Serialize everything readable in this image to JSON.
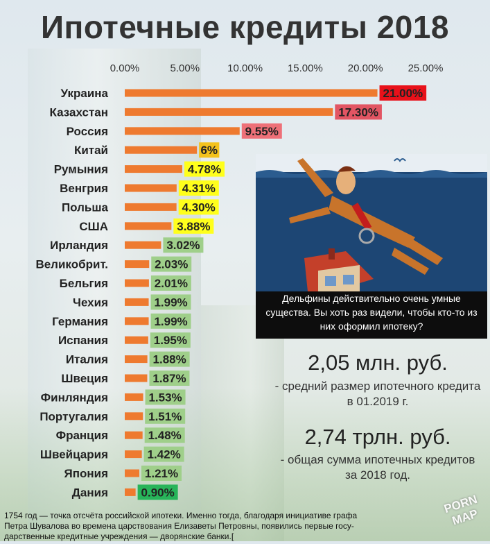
{
  "title": "Ипотечные кредиты 2018",
  "chart_data": {
    "type": "bar",
    "orientation": "horizontal",
    "x_ticks": [
      "0.00%",
      "5.00%",
      "10.00%",
      "15.00%",
      "20.00%",
      "25.00%"
    ],
    "xlim": [
      0,
      25
    ],
    "grid": false,
    "categories": [
      "Украина",
      "Казахстан",
      "Россия",
      "Китай",
      "Румыния",
      "Венгрия",
      "Польша",
      "США",
      "Ирландия",
      "Великобрит.",
      "Бельгия",
      "Чехия",
      "Германия",
      "Испания",
      "Италия",
      "Швеция",
      "Финляндия",
      "Португалия",
      "Франция",
      "Швейцария",
      "Япония",
      "Дания"
    ],
    "values": [
      21.0,
      17.3,
      9.55,
      6.0,
      4.78,
      4.31,
      4.3,
      3.88,
      3.02,
      2.03,
      2.01,
      1.99,
      1.99,
      1.95,
      1.88,
      1.87,
      1.53,
      1.51,
      1.48,
      1.42,
      1.21,
      0.9
    ],
    "labels": [
      "21.00%",
      "17.30%",
      "9.55%",
      "6%",
      "4.78%",
      "4.31%",
      "4.30%",
      "3.88%",
      "3.02%",
      "2.03%",
      "2.01%",
      "1.99%",
      "1.99%",
      "1.95%",
      "1.88%",
      "1.87%",
      "1.53%",
      "1.51%",
      "1.48%",
      "1.42%",
      "1.21%",
      "0.90%"
    ],
    "label_colors": [
      "#e8111a",
      "#e25563",
      "#ee7078",
      "#f3c21c",
      "#ffff1c",
      "#ffff1c",
      "#ffff1c",
      "#ffff1c",
      "#9fcf8a",
      "#9fcf8a",
      "#9fcf8a",
      "#9fcf8a",
      "#9fcf8a",
      "#9fcf8a",
      "#9fcf8a",
      "#9fcf8a",
      "#9fcf8a",
      "#9fcf8a",
      "#9fcf8a",
      "#9fcf8a",
      "#9fcf8a",
      "#27b45a"
    ],
    "bar_color": "#ee7a2f"
  },
  "cartoon": {
    "caption": "Дельфины действительно очень умные существа. Вы хоть раз видели, чтобы кто-то из них оформил ипотеку?"
  },
  "stats": {
    "avg_value": "2,05 млн. руб.",
    "avg_desc": "- средний размер ипотечного кредита в 01.2019 г.",
    "total_value": "2,74 трлн. руб.",
    "total_desc": "- общая сумма ипотечных кредитов за 2018 год."
  },
  "footnote": "1754 год — точка отсчёта российской ипотеки. Именно тогда, благодаря инициативе графа Петра Шувалова во времена царствования Елизаветы Петровны, появились первые госу- дарственные кредитные учреждения — дворянские банки.[",
  "watermark": "PORN MAP"
}
